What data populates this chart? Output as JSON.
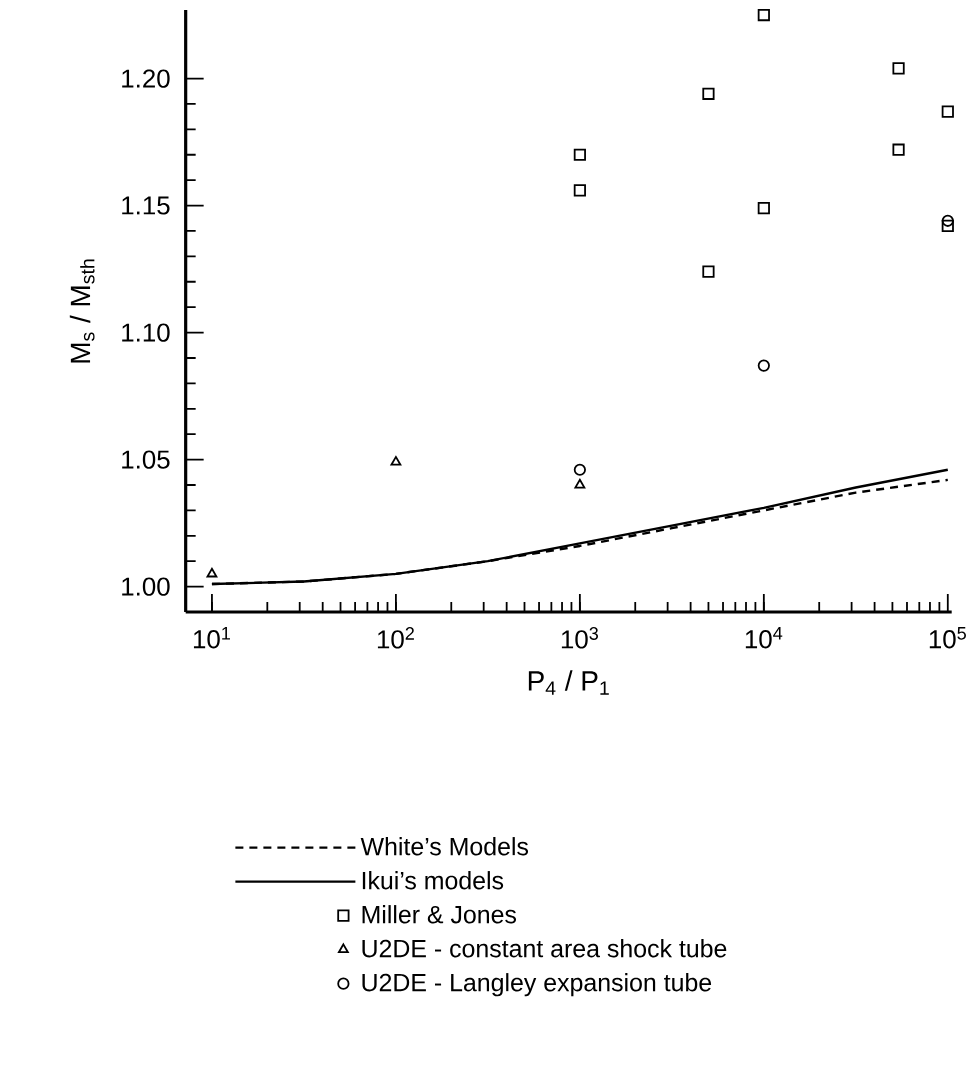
{
  "chart_data": {
    "type": "scatter",
    "xlabel": "P$_{4}$ / P$_{1}$",
    "ylabel": "M$_{s}$ / M$_{sth}$",
    "log": "x",
    "legend": "bottom",
    "xlim": [
      7.2,
      105000
    ],
    "ylim": [
      0.99,
      1.227
    ],
    "xticks": [
      {
        "value": 10,
        "label": "10$^{1}$"
      },
      {
        "value": 100,
        "label": "10$^{2}$"
      },
      {
        "value": 1000,
        "label": "10$^{3}$"
      },
      {
        "value": 10000,
        "label": "10$^{4}$"
      },
      {
        "value": 100000,
        "label": "10$^{5}$"
      }
    ],
    "yticks": [
      {
        "value": 1.0,
        "label": "1.00"
      },
      {
        "value": 1.05,
        "label": "1.05"
      },
      {
        "value": 1.1,
        "label": "1.10"
      },
      {
        "value": 1.15,
        "label": "1.15"
      },
      {
        "value": 1.2,
        "label": "1.20"
      }
    ],
    "series": [
      {
        "name": "White’s  Models",
        "type": "line",
        "line_style": "dashed",
        "marker": "none",
        "color": "#000000",
        "x": [
          10,
          31.6,
          100,
          316,
          1000,
          3162,
          10000,
          31623,
          100000
        ],
        "values": [
          1.001,
          1.002,
          1.005,
          1.01,
          1.016,
          1.023,
          1.03,
          1.037,
          1.042
        ]
      },
      {
        "name": "Ikui’s models",
        "type": "line",
        "line_style": "solid",
        "marker": "none",
        "color": "#000000",
        "x": [
          10,
          31.6,
          100,
          316,
          1000,
          3162,
          10000,
          31623,
          100000
        ],
        "values": [
          1.001,
          1.002,
          1.005,
          1.01,
          1.017,
          1.024,
          1.031,
          1.039,
          1.046
        ]
      },
      {
        "name": "Miller & Jones",
        "type": "scatter",
        "marker": "square",
        "color": "#000000",
        "x": [
          1000,
          1000,
          5000,
          5000,
          10000,
          10000,
          54000,
          54000,
          100000,
          100000
        ],
        "values": [
          1.17,
          1.156,
          1.194,
          1.124,
          1.225,
          1.149,
          1.204,
          1.172,
          1.187,
          1.142
        ]
      },
      {
        "name": "U2DE - constant area shock tube",
        "type": "scatter",
        "marker": "triangle",
        "color": "#000000",
        "x": [
          10,
          100,
          1000
        ],
        "values": [
          1.005,
          1.049,
          1.04
        ]
      },
      {
        "name": "U2DE - Langley expansion tube",
        "type": "scatter",
        "marker": "circle",
        "color": "#000000",
        "x": [
          1000,
          10000,
          100000
        ],
        "values": [
          1.046,
          1.087,
          1.144
        ]
      }
    ]
  }
}
